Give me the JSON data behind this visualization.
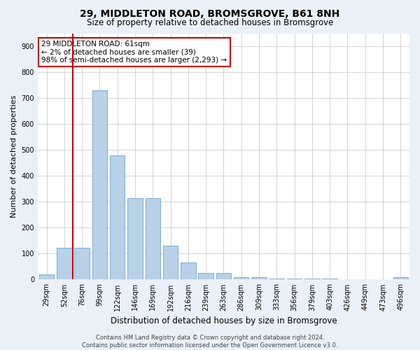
{
  "title": "29, MIDDLETON ROAD, BROMSGROVE, B61 8NH",
  "subtitle": "Size of property relative to detached houses in Bromsgrove",
  "xlabel": "Distribution of detached houses by size in Bromsgrove",
  "ylabel": "Number of detached properties",
  "categories": [
    "29sqm",
    "52sqm",
    "76sqm",
    "99sqm",
    "122sqm",
    "146sqm",
    "169sqm",
    "192sqm",
    "216sqm",
    "239sqm",
    "263sqm",
    "286sqm",
    "309sqm",
    "333sqm",
    "356sqm",
    "379sqm",
    "403sqm",
    "426sqm",
    "449sqm",
    "473sqm",
    "496sqm"
  ],
  "bar_heights": [
    20,
    122,
    122,
    730,
    480,
    315,
    315,
    130,
    65,
    25,
    25,
    10,
    10,
    5,
    5,
    3,
    3,
    0,
    0,
    0,
    8
  ],
  "bar_color": "#b8d0e8",
  "bar_edge_color": "#7aafd4",
  "vline_x_index": 1.5,
  "ylim": [
    0,
    950
  ],
  "yticks": [
    0,
    100,
    200,
    300,
    400,
    500,
    600,
    700,
    800,
    900
  ],
  "annotation_text": "29 MIDDLETON ROAD: 61sqm\n← 2% of detached houses are smaller (39)\n98% of semi-detached houses are larger (2,293) →",
  "annotation_box_color": "#ffffff",
  "annotation_box_edge": "#cc0000",
  "footer": "Contains HM Land Registry data © Crown copyright and database right 2024.\nContains public sector information licensed under the Open Government Licence v3.0.",
  "bg_color": "#eaf0f8",
  "plot_bg_color": "#ffffff",
  "grid_color": "#cccccc",
  "vline_color": "#cc0000",
  "title_fontsize": 10,
  "subtitle_fontsize": 8.5,
  "ylabel_fontsize": 8,
  "xlabel_fontsize": 8.5,
  "tick_fontsize": 7,
  "footer_fontsize": 6,
  "annot_fontsize": 7.5
}
